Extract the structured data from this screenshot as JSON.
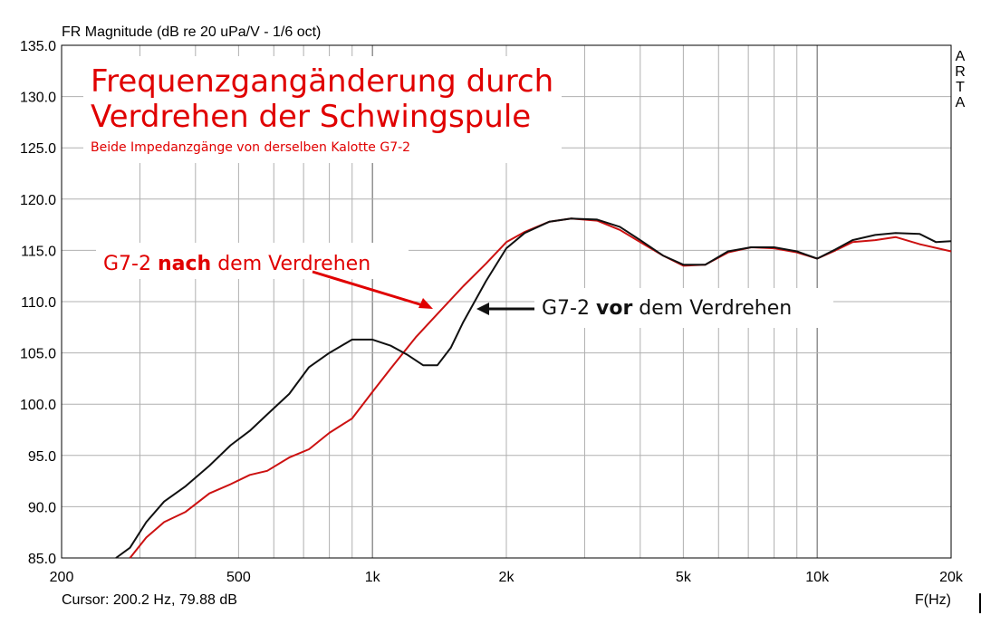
{
  "chart_data": {
    "type": "line",
    "title": "FR Magnitude (dB re 20 uPa/V - 1/6 oct)",
    "xlabel": "F(Hz)",
    "xscale": "log",
    "xlim": [
      200,
      20000
    ],
    "ylim": [
      85,
      135
    ],
    "grid": true,
    "x_tick_labels": [
      "200",
      "500",
      "1k",
      "2k",
      "5k",
      "10k",
      "20k"
    ],
    "x_tick_values": [
      200,
      500,
      1000,
      2000,
      5000,
      10000,
      20000
    ],
    "y_tick_labels": [
      "135.0",
      "130.0",
      "125.0",
      "120.0",
      "115.0",
      "110.0",
      "105.0",
      "100.0",
      "95.0",
      "90.0",
      "85.0"
    ],
    "y_tick_values": [
      135,
      130,
      125,
      120,
      115,
      110,
      105,
      100,
      95,
      90,
      85
    ],
    "cursor_readout": "Cursor: 200.2 Hz, 79.88 dB",
    "watermark": "ARTA",
    "series": [
      {
        "name": "G7-2 nach dem Verdrehen",
        "color": "#cc1111",
        "x": [
          285,
          310,
          340,
          380,
          430,
          480,
          530,
          580,
          650,
          720,
          800,
          900,
          1000,
          1100,
          1250,
          1400,
          1600,
          1800,
          2000,
          2200,
          2500,
          2800,
          3200,
          3600,
          4000,
          4500,
          5000,
          5600,
          6300,
          7100,
          8000,
          9000,
          10000,
          11000,
          12000,
          13500,
          15000,
          17000,
          20000
        ],
        "y": [
          85.0,
          87.0,
          88.5,
          89.5,
          91.3,
          92.2,
          93.1,
          93.5,
          94.8,
          95.6,
          97.2,
          98.6,
          101.2,
          103.5,
          106.5,
          108.8,
          111.5,
          113.7,
          115.8,
          116.8,
          117.8,
          118.1,
          117.9,
          117.0,
          115.8,
          114.5,
          113.5,
          113.6,
          114.8,
          115.3,
          115.2,
          114.8,
          114.2,
          115.0,
          115.8,
          116.0,
          116.3,
          115.6,
          114.9
        ]
      },
      {
        "name": "G7-2 vor dem Verdrehen",
        "color": "#111111",
        "x": [
          265,
          285,
          310,
          340,
          380,
          430,
          480,
          530,
          580,
          650,
          720,
          800,
          900,
          1000,
          1100,
          1200,
          1300,
          1400,
          1500,
          1600,
          1800,
          2000,
          2200,
          2500,
          2800,
          3200,
          3600,
          4000,
          4500,
          5000,
          5600,
          6300,
          7100,
          8000,
          9000,
          10000,
          11000,
          12000,
          13500,
          15000,
          17000,
          18500,
          20000
        ],
        "y": [
          85.0,
          86.0,
          88.5,
          90.5,
          92.0,
          94.0,
          96.0,
          97.4,
          99.0,
          101.0,
          103.6,
          105.0,
          106.3,
          106.3,
          105.7,
          104.8,
          103.8,
          103.8,
          105.5,
          108.0,
          112.0,
          115.2,
          116.7,
          117.8,
          118.1,
          118.0,
          117.3,
          116.0,
          114.5,
          113.6,
          113.6,
          114.9,
          115.3,
          115.3,
          114.9,
          114.2,
          115.1,
          116.0,
          116.5,
          116.7,
          116.6,
          115.8,
          115.9
        ]
      }
    ],
    "annotations": {
      "heading_line1": "Frequenzganganderung durch",
      "heading_line1_display": "Frequenzgangänderung durch",
      "heading_line2": "Verdrehen der Schwingspule",
      "subheading": "Beide Impedanzgänge von derselben Kalotte G7-2",
      "label_red_prefix": "G7-2 ",
      "label_red_bold": "nach",
      "label_red_suffix": " dem Verdrehen",
      "label_black_prefix": "G7-2 ",
      "label_black_bold": "vor",
      "label_black_suffix": " dem Verdrehen"
    },
    "colors": {
      "annotation_red": "#e00000",
      "grid": "#b0b0b0",
      "frame": "#000000",
      "background": "#ffffff"
    }
  }
}
